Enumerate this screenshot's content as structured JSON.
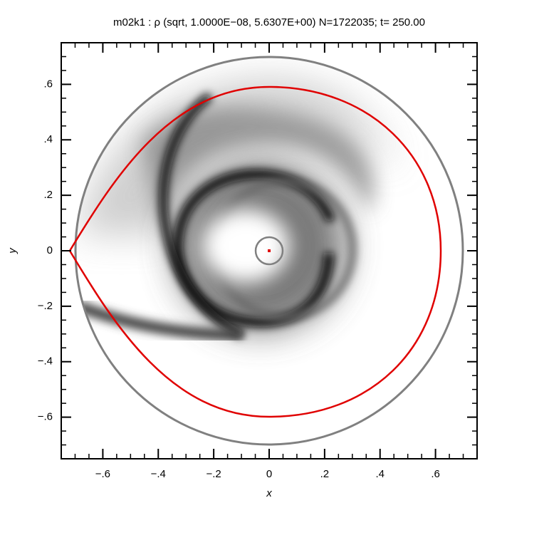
{
  "chart_data": {
    "type": "density",
    "title": "m02k1 : ρ (sqrt, 1.0000E−08, 5.6307E+00) N=1722035; t=  250.00",
    "xlabel": "x",
    "ylabel": "y",
    "xlim": [
      -0.75,
      0.75
    ],
    "ylim": [
      -0.75,
      0.75
    ],
    "xticks": [
      {
        "value": -0.6,
        "label": "−.6"
      },
      {
        "value": -0.4,
        "label": "−.4"
      },
      {
        "value": -0.2,
        "label": "−.2"
      },
      0,
      {
        "value": 0.2,
        "label": ".2"
      },
      {
        "value": 0.4,
        "label": ".4"
      },
      {
        "value": 0.6,
        "label": ".6"
      }
    ],
    "yticks": [
      {
        "value": -0.6,
        "label": "−.6"
      },
      {
        "value": -0.4,
        "label": "−.4"
      },
      {
        "value": -0.2,
        "label": "−.2"
      },
      0,
      {
        "value": 0.2,
        "label": ".2"
      },
      {
        "value": 0.4,
        "label": ".4"
      },
      {
        "value": 0.6,
        "label": ".6"
      }
    ]
  }
}
